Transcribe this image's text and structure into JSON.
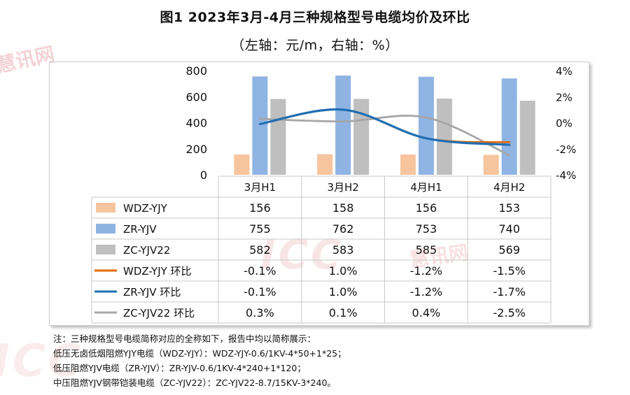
{
  "title": "图1 2023年3月-4月三种规格型号电缆均价及环比",
  "subtitle": "（左轴：元/m，右轴：%）",
  "watermark": {
    "brand": "慧讯网",
    "logo": "ICC"
  },
  "notes": [
    "注：三种规格型号电缆简称对应的全称如下，报告中均以简称展示：",
    "低压无卤低烟阻燃YJY电缆（WDZ-YJY）：WDZ-YJY-0.6/1KV-4*50+1*25；",
    "低压阻燃YJV电缆（ZR-YJV）：ZR-YJV-0.6/1KV-4*240+1*120；",
    "中压阻燃YJV钢带铠装电缆（ZC-YJV22）：ZC-YJV22-8.7/15KV-3*240。"
  ],
  "chart_data": {
    "type": "bar",
    "categories": [
      "3月H1",
      "3月H2",
      "4月H1",
      "4月H2"
    ],
    "left_axis": {
      "ticks": [
        "800",
        "600",
        "400",
        "200",
        "0"
      ],
      "range": [
        0,
        800
      ]
    },
    "right_axis": {
      "ticks": [
        "4%",
        "2%",
        "0%",
        "-2%",
        "-4%"
      ],
      "range": [
        -4,
        4
      ]
    },
    "bar_series": [
      {
        "name": "WDZ-YJY",
        "values": [
          156,
          158,
          156,
          153
        ],
        "labels": [
          "156",
          "158",
          "156",
          "153"
        ],
        "color": "#f6c49d"
      },
      {
        "name": "ZR-YJV",
        "values": [
          755,
          762,
          753,
          740
        ],
        "labels": [
          "755",
          "762",
          "753",
          "740"
        ],
        "color": "#8fb4e3"
      },
      {
        "name": "ZC-YJV22",
        "values": [
          582,
          583,
          585,
          569
        ],
        "labels": [
          "582",
          "583",
          "585",
          "569"
        ],
        "color": "#bfbfbf"
      }
    ],
    "line_series": [
      {
        "name": "WDZ-YJY 环比",
        "values": [
          -0.1,
          1.0,
          -1.2,
          -1.5
        ],
        "labels": [
          "-0.1%",
          "1.0%",
          "-1.2%",
          "-1.5%"
        ],
        "color": "#e36c0a"
      },
      {
        "name": "ZR-YJV 环比",
        "values": [
          -0.1,
          1.0,
          -1.2,
          -1.7
        ],
        "labels": [
          "-0.1%",
          "1.0%",
          "-1.2%",
          "-1.7%"
        ],
        "color": "#1f6fb4"
      },
      {
        "name": "ZC-YJV22 环比",
        "values": [
          0.3,
          0.1,
          0.4,
          -2.5
        ],
        "labels": [
          "0.3%",
          "0.1%",
          "0.4%",
          "-2.5%"
        ],
        "color": "#a6a6a6"
      }
    ]
  }
}
